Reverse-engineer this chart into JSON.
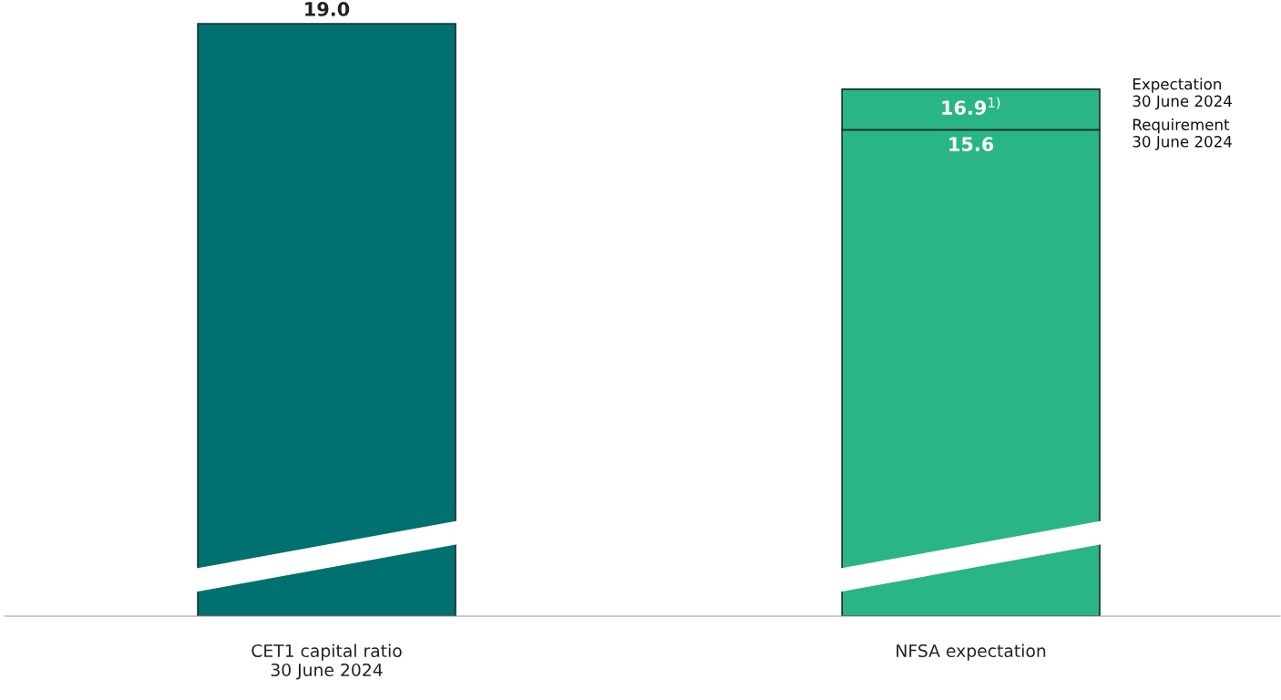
{
  "chart_data": {
    "type": "bar",
    "stacked": true,
    "categories": [
      "CET1 capital ratio\n30 June 2024",
      "NFSA expectation"
    ],
    "series": [
      {
        "colors": [
          "#007070",
          "#2ab584"
        ],
        "values": [
          19.0,
          15.6
        ],
        "value_labels": [
          "19.0",
          "15.6"
        ]
      },
      {
        "color": "#2ab584",
        "values": [
          null,
          1.3
        ],
        "value_labels": [
          null,
          "16.9$^{1)}$"
        ]
      }
    ],
    "tick_labels": "x",
    "grid": false,
    "legend": false,
    "annotations": [
      "Expectation\n30 June 2024",
      "Requirement\n30 June 2024"
    ]
  }
}
